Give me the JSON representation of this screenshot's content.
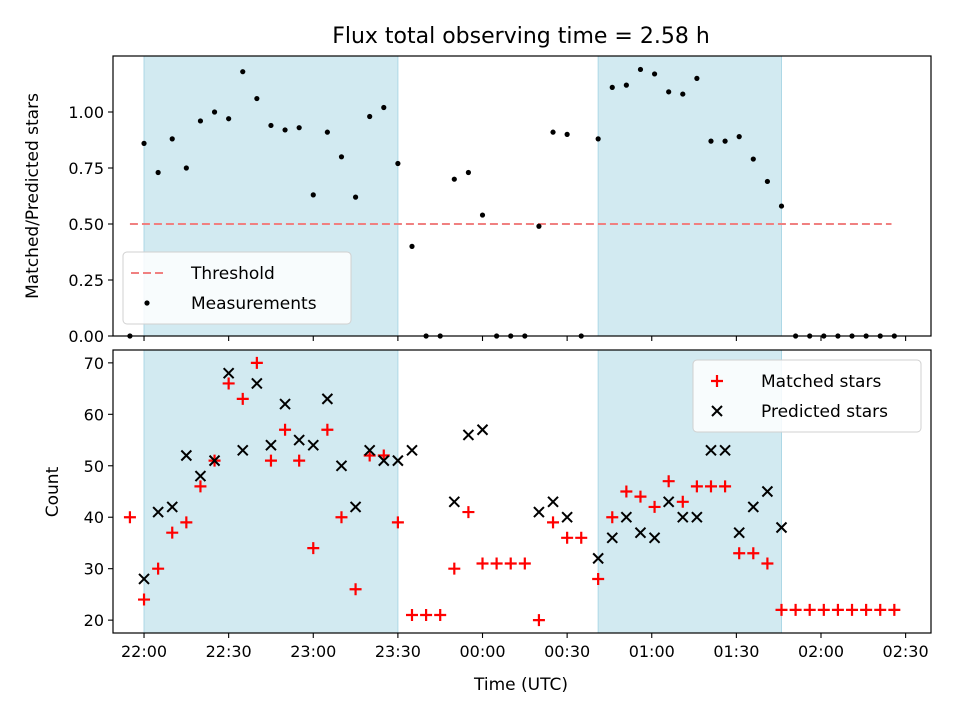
{
  "chart_data": [
    {
      "type": "scatter",
      "title": "Flux total observing time = 2.58 h",
      "xlabel": "",
      "ylabel": "Matched/Predicted stars",
      "xlim": [
        "21:49",
        "02:39"
      ],
      "ylim": [
        0,
        1.25
      ],
      "yticks": [
        0.0,
        0.25,
        0.5,
        0.75,
        1.0
      ],
      "ytick_labels": [
        "0.00",
        "0.25",
        "0.50",
        "0.75",
        "1.00"
      ],
      "highlight_bands": [
        {
          "start": "22:00",
          "end": "23:30",
          "color": "#add8e6"
        },
        {
          "start": "00:41",
          "end": "01:46",
          "color": "#add8e6"
        }
      ],
      "legend_location": "lower-left",
      "series": [
        {
          "name": "Threshold",
          "kind": "dashed-line",
          "color": "#f08080",
          "x": [
            "21:55",
            "02:25"
          ],
          "y": [
            0.5,
            0.5
          ]
        },
        {
          "name": "Measurements",
          "kind": "dots",
          "color": "#000000",
          "x": [
            "21:55",
            "22:00",
            "22:05",
            "22:10",
            "22:15",
            "22:20",
            "22:25",
            "22:30",
            "22:35",
            "22:40",
            "22:45",
            "22:50",
            "22:55",
            "23:00",
            "23:05",
            "23:10",
            "23:15",
            "23:20",
            "23:25",
            "23:30",
            "23:35",
            "23:40",
            "23:45",
            "23:50",
            "23:55",
            "00:00",
            "00:05",
            "00:10",
            "00:15",
            "00:20",
            "00:25",
            "00:30",
            "00:35",
            "00:41",
            "00:46",
            "00:51",
            "00:56",
            "01:01",
            "01:06",
            "01:11",
            "01:16",
            "01:21",
            "01:26",
            "01:31",
            "01:36",
            "01:41",
            "01:46",
            "01:51",
            "01:56",
            "02:01",
            "02:06",
            "02:11",
            "02:16",
            "02:21",
            "02:26"
          ],
          "y": [
            0,
            0.86,
            0.73,
            0.88,
            0.75,
            0.96,
            1.0,
            0.97,
            1.18,
            1.06,
            0.94,
            0.92,
            0.93,
            0.63,
            0.91,
            0.8,
            0.62,
            0.98,
            1.02,
            0.77,
            0.4,
            0,
            0,
            0.7,
            0.73,
            0.54,
            0,
            0,
            0,
            0.49,
            0.91,
            0.9,
            0,
            0.88,
            1.11,
            1.12,
            1.19,
            1.17,
            1.09,
            1.08,
            1.15,
            0.87,
            0.87,
            0.89,
            0.79,
            0.69,
            0.58,
            0,
            0,
            0,
            0,
            0,
            0,
            0,
            0
          ]
        }
      ]
    },
    {
      "type": "scatter",
      "title": "",
      "xlabel": "Time (UTC)",
      "ylabel": "Count",
      "xlim": [
        "21:49",
        "02:39"
      ],
      "ylim": [
        17.5,
        72.5
      ],
      "yticks": [
        20,
        30,
        40,
        50,
        60,
        70
      ],
      "ytick_labels": [
        "20",
        "30",
        "40",
        "50",
        "60",
        "70"
      ],
      "xtick_labels": [
        "22:00",
        "22:30",
        "23:00",
        "23:30",
        "00:00",
        "00:30",
        "01:00",
        "01:30",
        "02:00",
        "02:30"
      ],
      "highlight_bands": [
        {
          "start": "22:00",
          "end": "23:30",
          "color": "#add8e6"
        },
        {
          "start": "00:41",
          "end": "01:46",
          "color": "#add8e6"
        }
      ],
      "legend_location": "upper-right",
      "series": [
        {
          "name": "Matched stars",
          "kind": "plus",
          "color": "#ff0000",
          "x": [
            "21:55",
            "22:00",
            "22:05",
            "22:10",
            "22:15",
            "22:20",
            "22:25",
            "22:30",
            "22:35",
            "22:40",
            "22:45",
            "22:50",
            "22:55",
            "23:00",
            "23:05",
            "23:10",
            "23:15",
            "23:20",
            "23:25",
            "23:30",
            "23:35",
            "23:40",
            "23:45",
            "23:50",
            "23:55",
            "00:00",
            "00:05",
            "00:10",
            "00:15",
            "00:20",
            "00:25",
            "00:30",
            "00:35",
            "00:41",
            "00:46",
            "00:51",
            "00:56",
            "01:01",
            "01:06",
            "01:11",
            "01:16",
            "01:21",
            "01:26",
            "01:31",
            "01:36",
            "01:41",
            "01:46",
            "01:51",
            "01:56",
            "02:01",
            "02:06",
            "02:11",
            "02:16",
            "02:21",
            "02:26"
          ],
          "y": [
            40,
            24,
            30,
            37,
            39,
            46,
            51,
            66,
            63,
            70,
            51,
            57,
            51,
            34,
            57,
            40,
            26,
            52,
            52,
            39,
            21,
            21,
            21,
            30,
            41,
            31,
            31,
            31,
            31,
            20,
            39,
            36,
            36,
            28,
            40,
            45,
            44,
            42,
            47,
            43,
            46,
            46,
            46,
            33,
            33,
            31,
            22,
            22,
            22,
            22,
            22,
            22,
            22,
            22,
            22
          ]
        },
        {
          "name": "Predicted stars",
          "kind": "x",
          "color": "#000000",
          "x": [
            "22:00",
            "22:05",
            "22:10",
            "22:15",
            "22:20",
            "22:25",
            "22:30",
            "22:35",
            "22:40",
            "22:45",
            "22:50",
            "22:55",
            "23:00",
            "23:05",
            "23:10",
            "23:15",
            "23:20",
            "23:25",
            "23:30",
            "23:35",
            "23:50",
            "23:55",
            "00:00",
            "00:20",
            "00:25",
            "00:30",
            "00:41",
            "00:46",
            "00:51",
            "00:56",
            "01:01",
            "01:06",
            "01:11",
            "01:16",
            "01:21",
            "01:26",
            "01:31",
            "01:36",
            "01:41",
            "01:46"
          ],
          "y": [
            28,
            41,
            42,
            52,
            48,
            51,
            68,
            53,
            66,
            54,
            62,
            55,
            54,
            63,
            50,
            42,
            53,
            51,
            51,
            53,
            43,
            56,
            57,
            41,
            43,
            40,
            32,
            36,
            40,
            37,
            36,
            43,
            40,
            40,
            53,
            53,
            37,
            42,
            45,
            38
          ]
        }
      ]
    }
  ]
}
